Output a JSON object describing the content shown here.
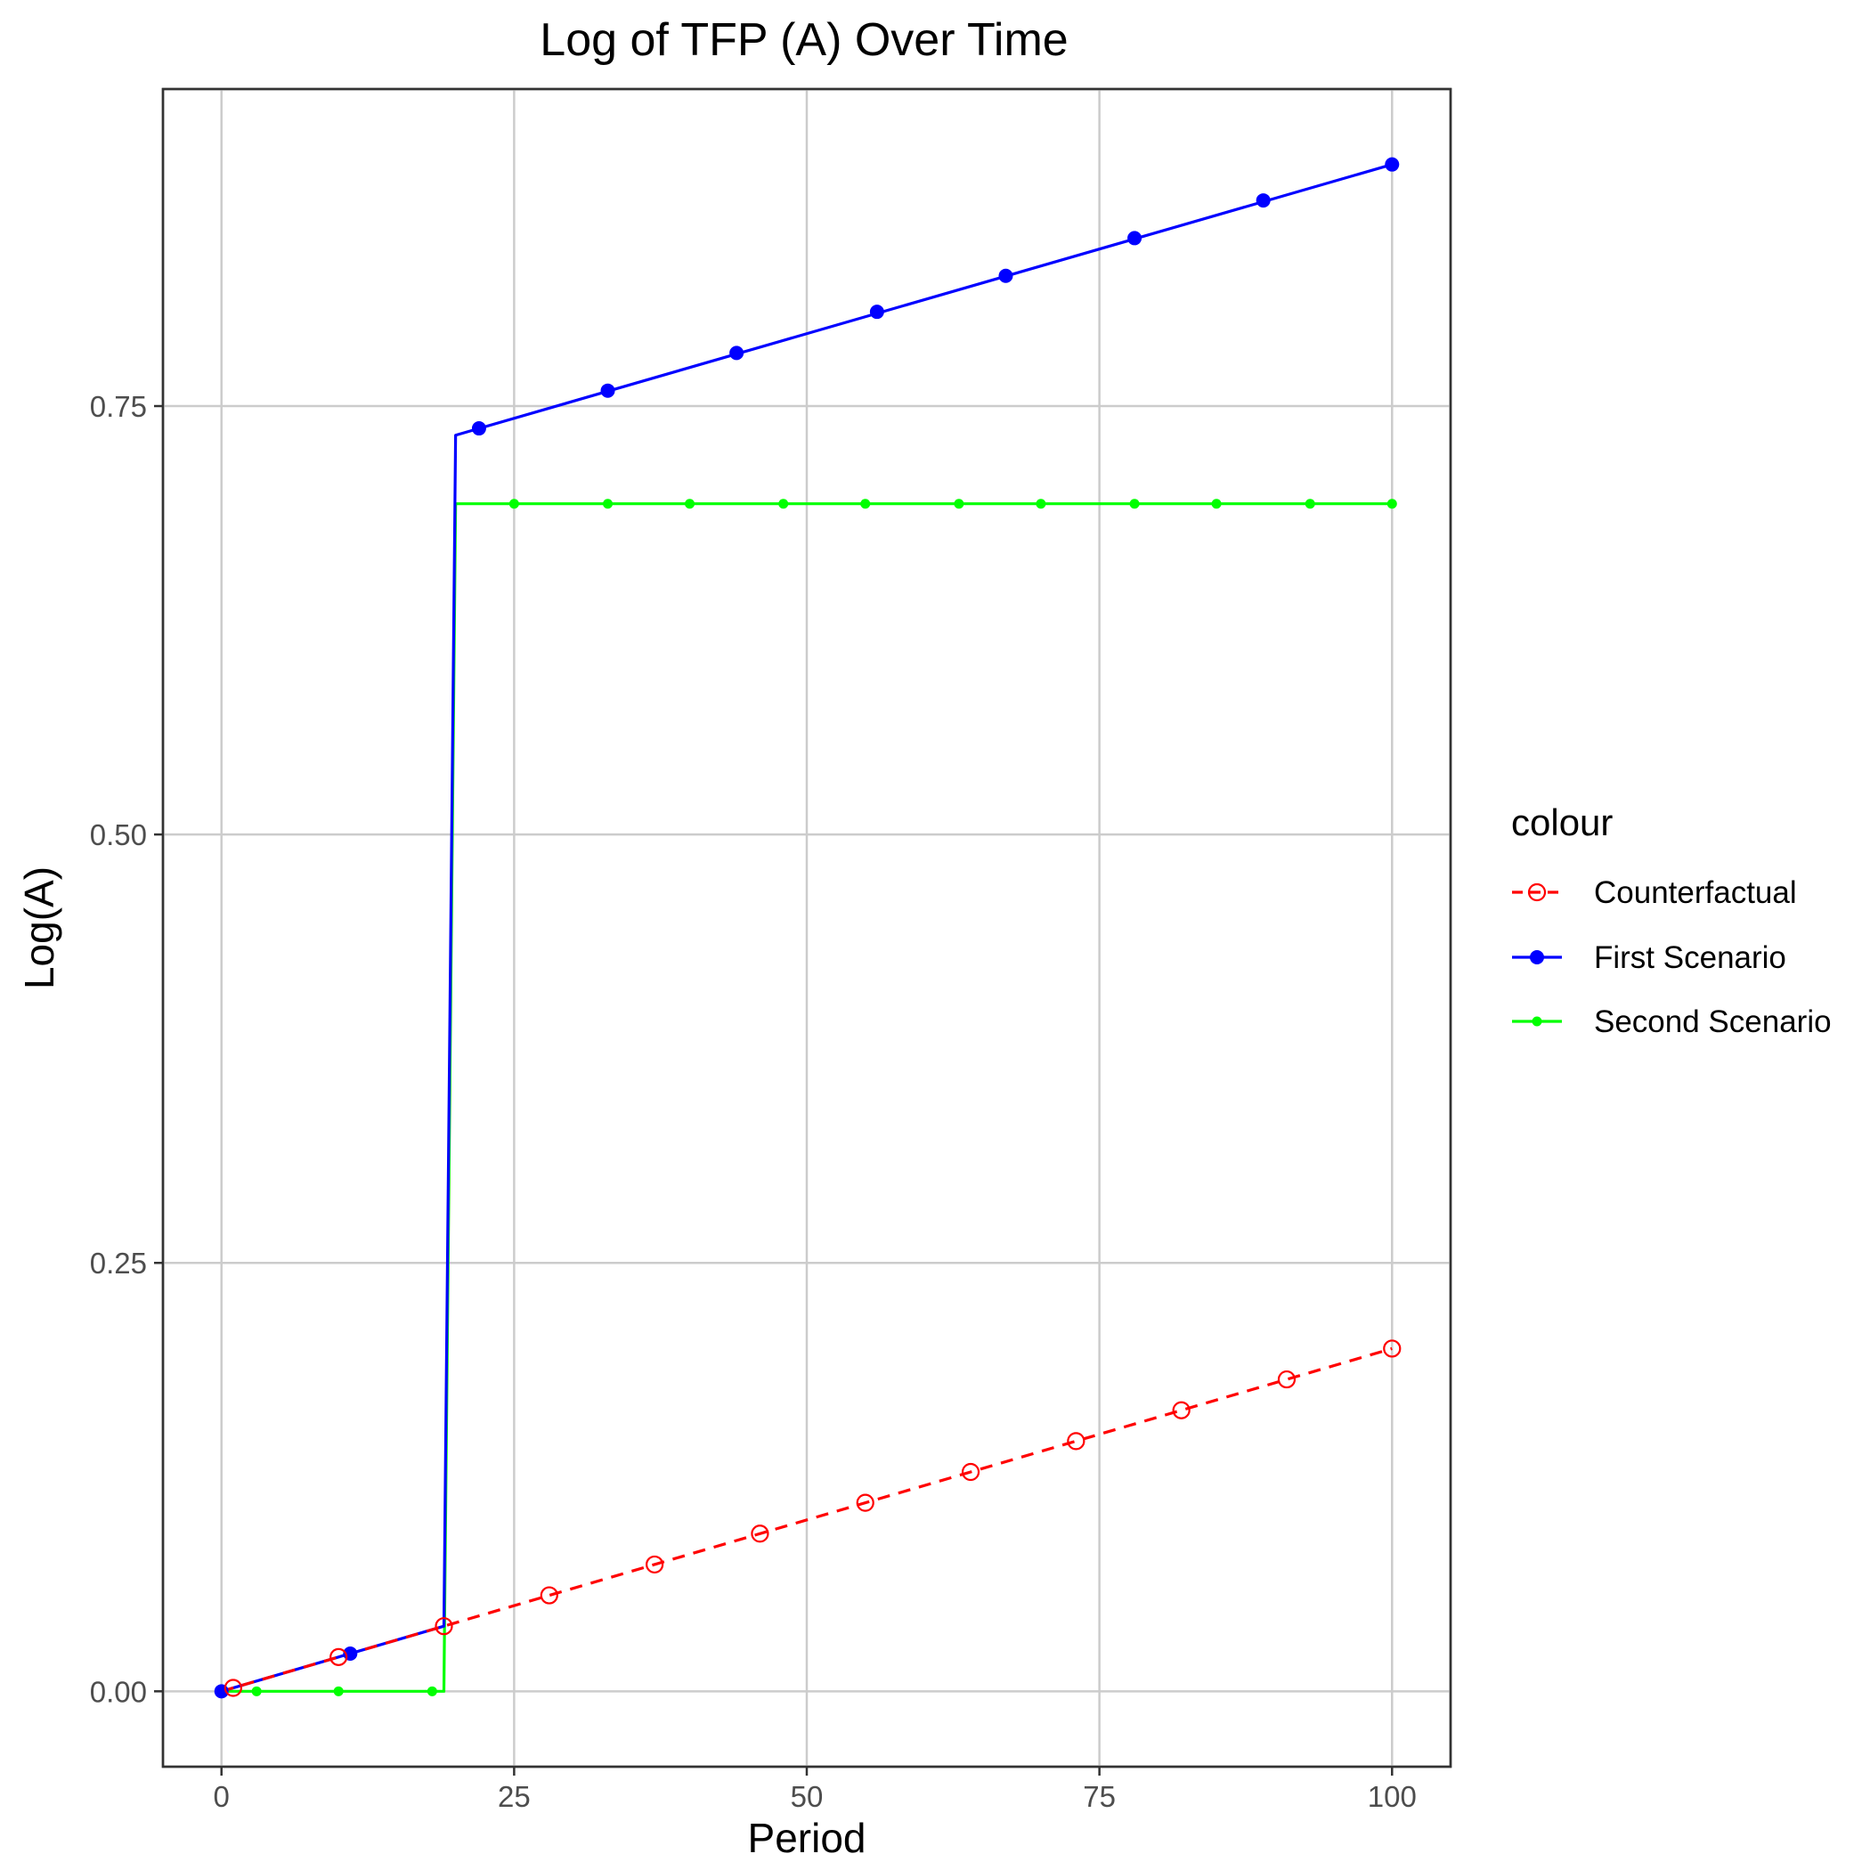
{
  "chart_data": {
    "type": "line",
    "title": "Log of TFP (A) Over Time",
    "xlabel": "Period",
    "ylabel": "Log(A)",
    "xlim": [
      -5,
      105
    ],
    "ylim": [
      -0.044,
      0.935
    ],
    "x_ticks": [
      0,
      25,
      50,
      75,
      100
    ],
    "x_tick_labels": [
      "0",
      "25",
      "50",
      "75",
      "100"
    ],
    "y_ticks": [
      0,
      0.25,
      0.5,
      0.75
    ],
    "y_tick_labels": [
      "0.00",
      "0.25",
      "0.50",
      "0.75"
    ],
    "grid": true,
    "legend": {
      "title": "colour",
      "position": "right"
    },
    "series": [
      {
        "name": "Counterfactual",
        "color": "#ff0000",
        "line_style": "dashed",
        "marker": "open-circle",
        "line": [
          [
            0,
            0.0
          ],
          [
            100,
            0.2
          ]
        ],
        "points": [
          [
            1,
            0.002
          ],
          [
            10,
            0.02
          ],
          [
            19,
            0.038
          ],
          [
            28,
            0.056
          ],
          [
            37,
            0.074
          ],
          [
            46,
            0.092
          ],
          [
            55,
            0.11
          ],
          [
            64,
            0.128
          ],
          [
            73,
            0.146
          ],
          [
            82,
            0.164
          ],
          [
            91,
            0.182
          ],
          [
            100,
            0.2
          ]
        ]
      },
      {
        "name": "First Scenario",
        "color": "#0000ff",
        "line_style": "solid",
        "marker": "filled-circle",
        "line": [
          [
            0,
            0.0
          ],
          [
            19,
            0.038
          ],
          [
            20,
            0.733
          ],
          [
            100,
            0.891
          ]
        ],
        "points": [
          [
            0,
            0.0
          ],
          [
            11,
            0.022
          ],
          [
            22,
            0.737
          ],
          [
            33,
            0.759
          ],
          [
            44,
            0.781
          ],
          [
            56,
            0.805
          ],
          [
            67,
            0.826
          ],
          [
            78,
            0.848
          ],
          [
            89,
            0.87
          ],
          [
            100,
            0.891
          ]
        ]
      },
      {
        "name": "Second Scenario",
        "color": "#00ff00",
        "line_style": "solid",
        "marker": "small-dot",
        "line": [
          [
            0,
            0.0
          ],
          [
            19,
            0.0
          ],
          [
            20,
            0.693
          ],
          [
            100,
            0.693
          ]
        ],
        "points": [
          [
            3,
            0.0
          ],
          [
            10,
            0.0
          ],
          [
            18,
            0.0
          ],
          [
            25,
            0.693
          ],
          [
            33,
            0.693
          ],
          [
            40,
            0.693
          ],
          [
            48,
            0.693
          ],
          [
            55,
            0.693
          ],
          [
            63,
            0.693
          ],
          [
            70,
            0.693
          ],
          [
            78,
            0.693
          ],
          [
            85,
            0.693
          ],
          [
            93,
            0.693
          ],
          [
            100,
            0.693
          ]
        ]
      }
    ]
  }
}
